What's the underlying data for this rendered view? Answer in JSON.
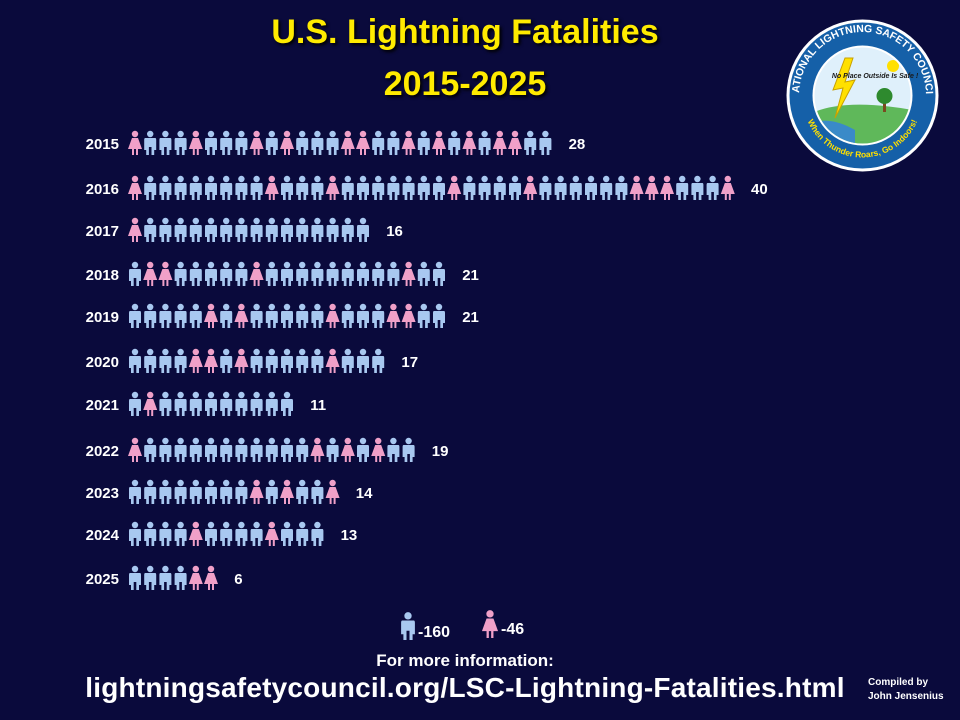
{
  "header": {
    "title_line1": "U.S. Lightning Fatalities",
    "title_line2": "2015-2025"
  },
  "logo": {
    "organization": "NATIONAL LIGHTNING SAFETY COUNCIL",
    "inner_text": "No Place Outside Is Safe !",
    "slogan": "When Thunder Roars, Go Indoors!"
  },
  "colors": {
    "background": "#0a0a3c",
    "title": "#ffeb00",
    "male": "#a8c8f0",
    "female": "#f0a0c8",
    "text": "#ffffff"
  },
  "chart_data": {
    "type": "bar",
    "title": "U.S. Lightning Fatalities 2015-2025",
    "categories": [
      "2015",
      "2016",
      "2017",
      "2018",
      "2019",
      "2020",
      "2021",
      "2022",
      "2023",
      "2024",
      "2025"
    ],
    "values": [
      28,
      40,
      16,
      21,
      21,
      17,
      11,
      19,
      14,
      13,
      6
    ],
    "female_positions": [
      [
        0,
        4,
        8,
        10,
        14,
        15,
        18,
        20,
        22,
        24,
        25
      ],
      [
        0,
        9,
        13,
        21,
        26,
        33,
        34,
        35,
        39
      ],
      [
        0
      ],
      [
        1,
        2,
        8,
        18
      ],
      [
        5,
        7,
        13,
        17,
        18
      ],
      [
        4,
        5,
        7,
        13
      ],
      [
        1
      ],
      [
        0,
        12,
        14,
        16
      ],
      [
        8,
        10,
        13
      ],
      [
        4,
        9
      ],
      [
        4,
        5
      ]
    ],
    "legend": [
      {
        "icon": "male-icon",
        "label": "-160"
      },
      {
        "icon": "female-icon",
        "label": "-46"
      }
    ]
  },
  "footer": {
    "more_info": "For more information:",
    "url": "lightningsafetycouncil.org/LSC-Lightning-Fatalities.html",
    "compiled_line1": "Compiled by",
    "compiled_line2": "John Jensenius"
  }
}
